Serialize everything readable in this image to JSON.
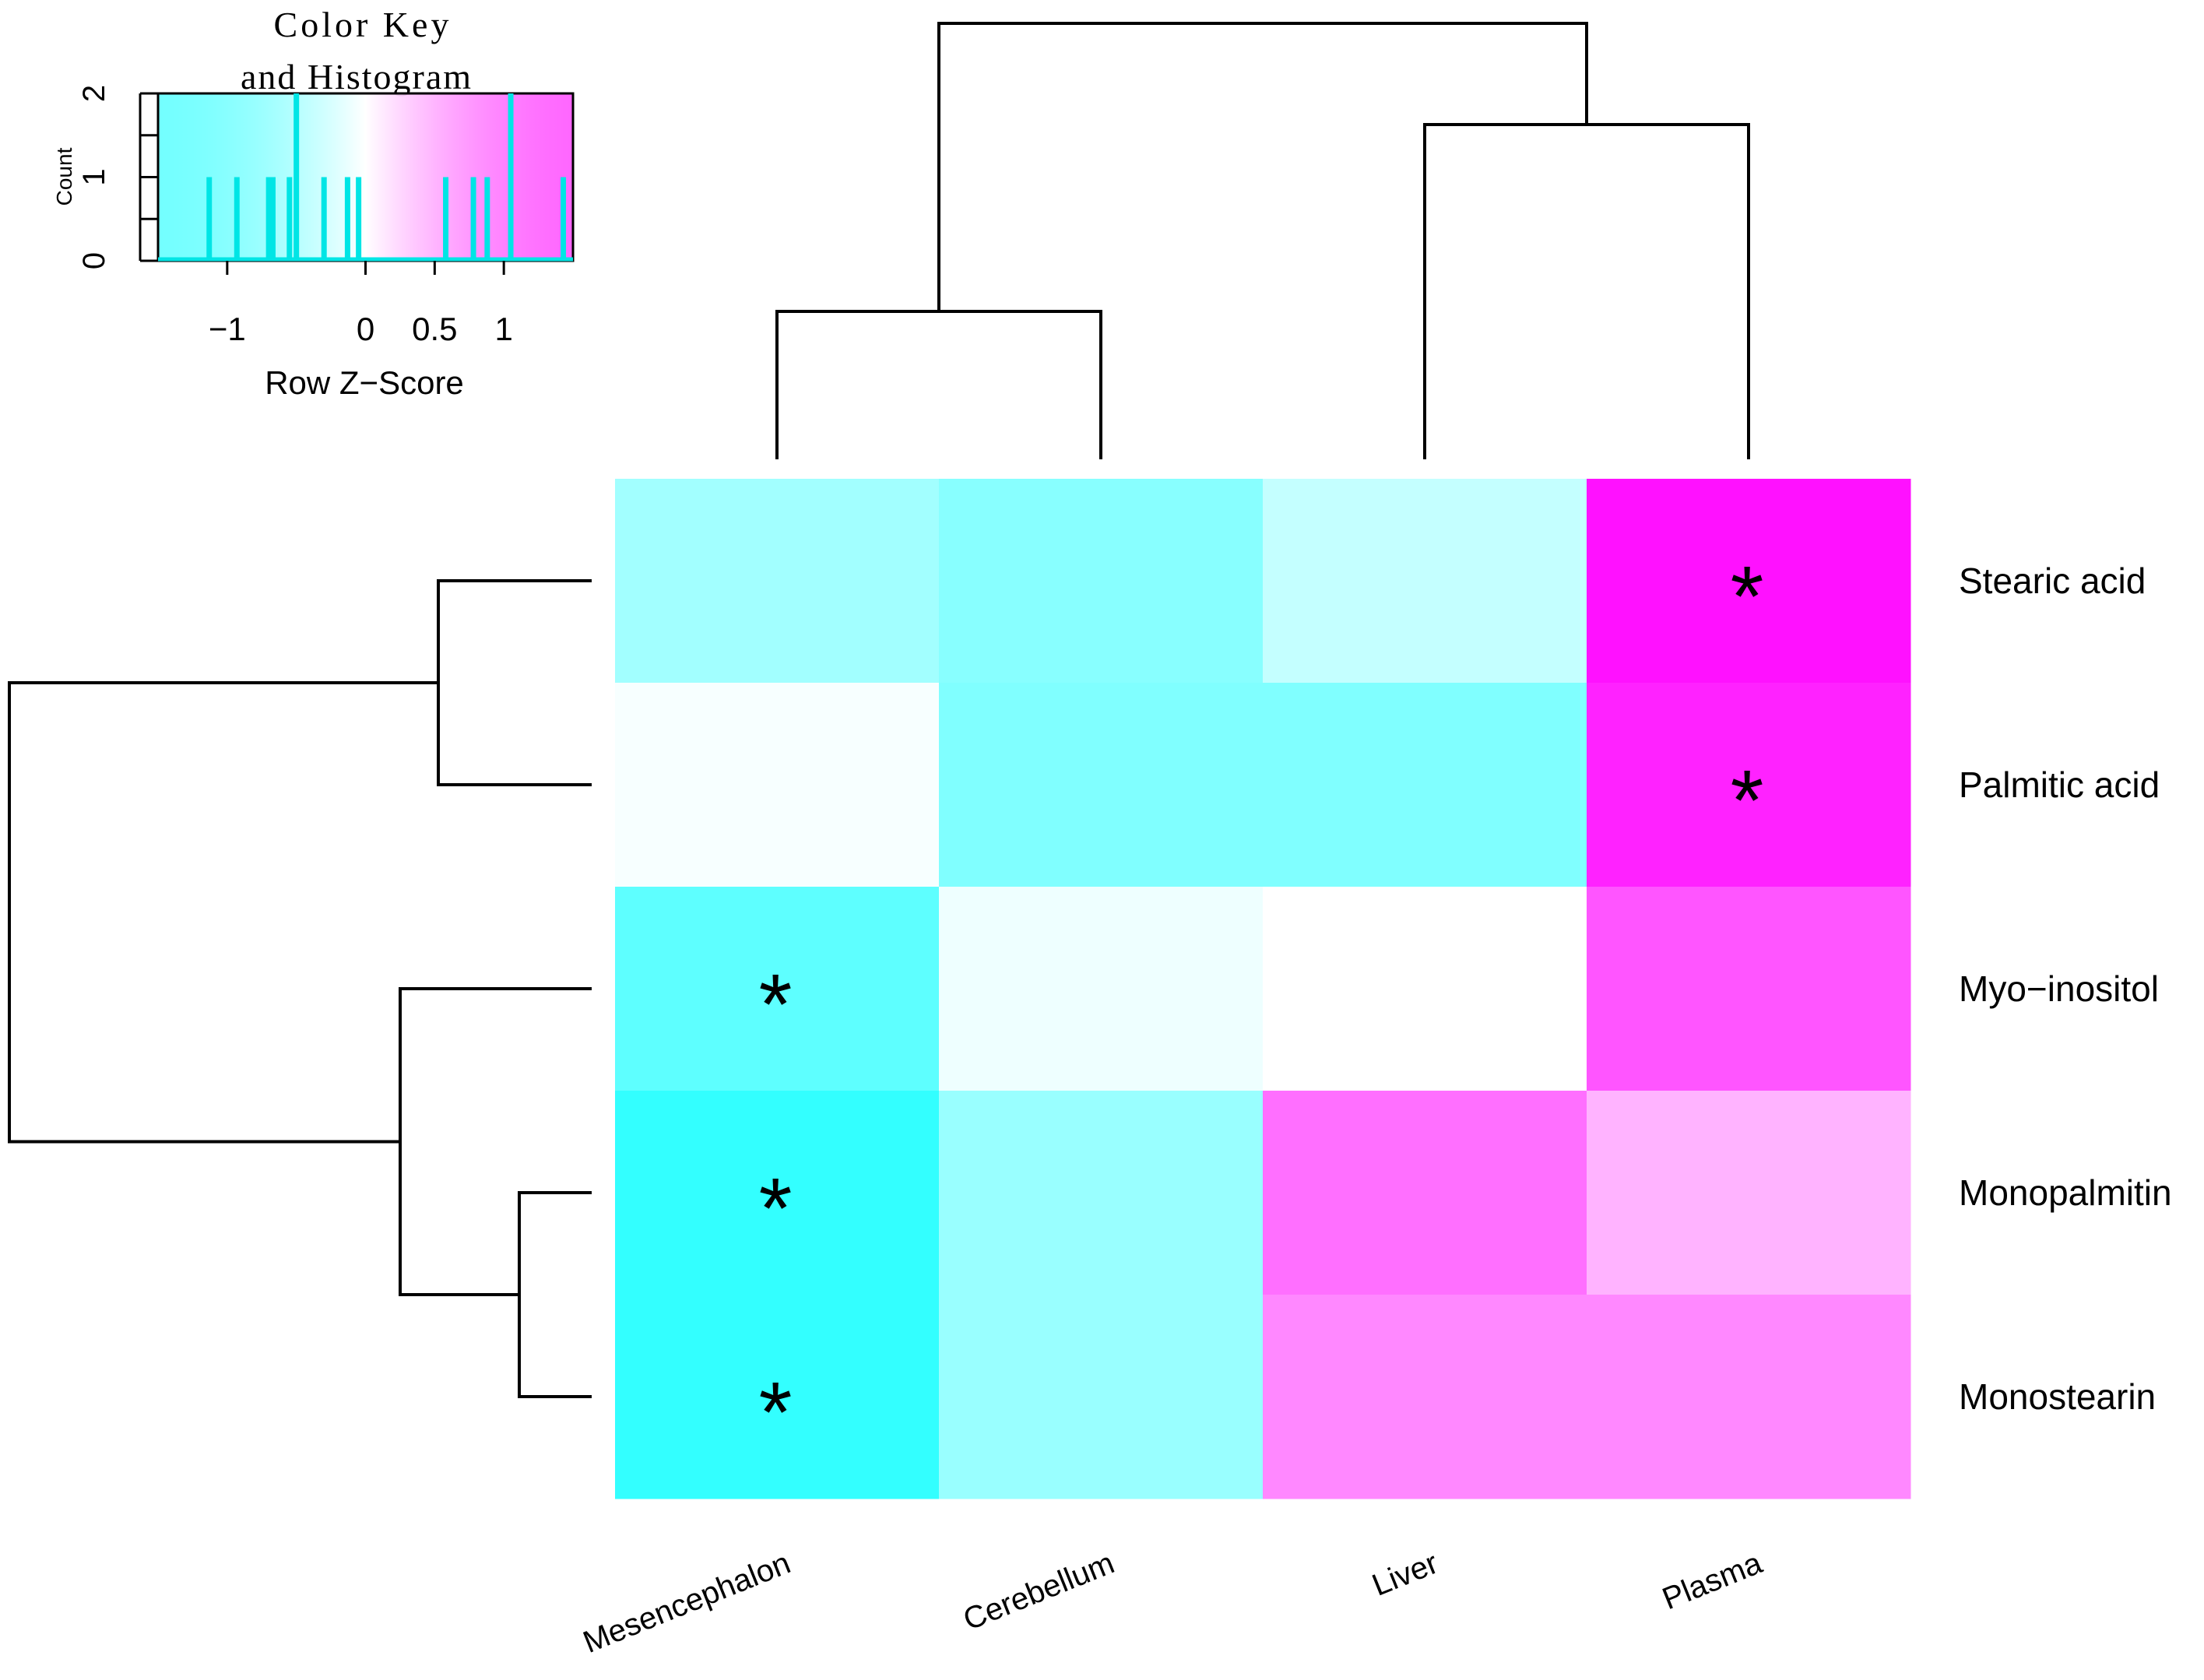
{
  "chart_data": {
    "type": "heatmap",
    "rows": [
      "Stearic acid",
      "Palmitic acid",
      "Myo−inositol",
      "Monopalmitin",
      "Monostearin"
    ],
    "columns": [
      "Mesencephalon",
      "Cerebellum",
      "Liver",
      "Plasma"
    ],
    "z_values": [
      [
        -0.55,
        -0.7,
        -0.35,
        1.4
      ],
      [
        -0.05,
        -0.75,
        -0.75,
        1.3
      ],
      [
        -0.95,
        -0.1,
        0.0,
        1.0
      ],
      [
        -1.2,
        -0.6,
        0.85,
        0.45
      ],
      [
        -1.2,
        -0.6,
        0.7,
        0.7
      ]
    ],
    "significance_marks": [
      [
        false,
        false,
        false,
        true
      ],
      [
        false,
        false,
        false,
        true
      ],
      [
        true,
        false,
        false,
        false
      ],
      [
        true,
        false,
        false,
        false
      ],
      [
        true,
        false,
        false,
        false
      ]
    ],
    "significance_symbol": "*",
    "color_scale": {
      "low": "#00ffff",
      "mid": "#ffffff",
      "high": "#ff00ff",
      "range": [
        -1.5,
        1.5
      ]
    },
    "dendrogram_columns": "((Mesencephalon,Cerebellum),(Liver,Plasma))",
    "dendrogram_rows": "((Stearic acid,Palmitic acid),(Myo−inositol,(Monopalmitin,Monostearin)))",
    "color_key": {
      "title_line1": "Color Key",
      "title_line2": "and Histogram",
      "xlabel": "Row Z−Score",
      "ylabel": "Count",
      "x_ticks": [
        "−1",
        "0",
        "0.5",
        "1"
      ],
      "x_tick_values": [
        -1,
        0,
        0.5,
        1
      ],
      "y_ticks": [
        "0",
        "1",
        "2"
      ],
      "y_tick_values": [
        0,
        1,
        2
      ],
      "x_range": [
        -1.5,
        1.5
      ],
      "y_range": [
        0,
        2
      ],
      "histogram_bars": [
        {
          "x": -1.13,
          "count": 1
        },
        {
          "x": -0.93,
          "count": 1
        },
        {
          "x": -0.7,
          "count": 1
        },
        {
          "x": -0.67,
          "count": 1
        },
        {
          "x": -0.55,
          "count": 1
        },
        {
          "x": -0.5,
          "count": 2
        },
        {
          "x": -0.3,
          "count": 1
        },
        {
          "x": -0.13,
          "count": 1
        },
        {
          "x": -0.05,
          "count": 1
        },
        {
          "x": 0.58,
          "count": 1
        },
        {
          "x": 0.78,
          "count": 1
        },
        {
          "x": 0.88,
          "count": 1
        },
        {
          "x": 1.05,
          "count": 2
        },
        {
          "x": 1.43,
          "count": 1
        }
      ]
    }
  }
}
